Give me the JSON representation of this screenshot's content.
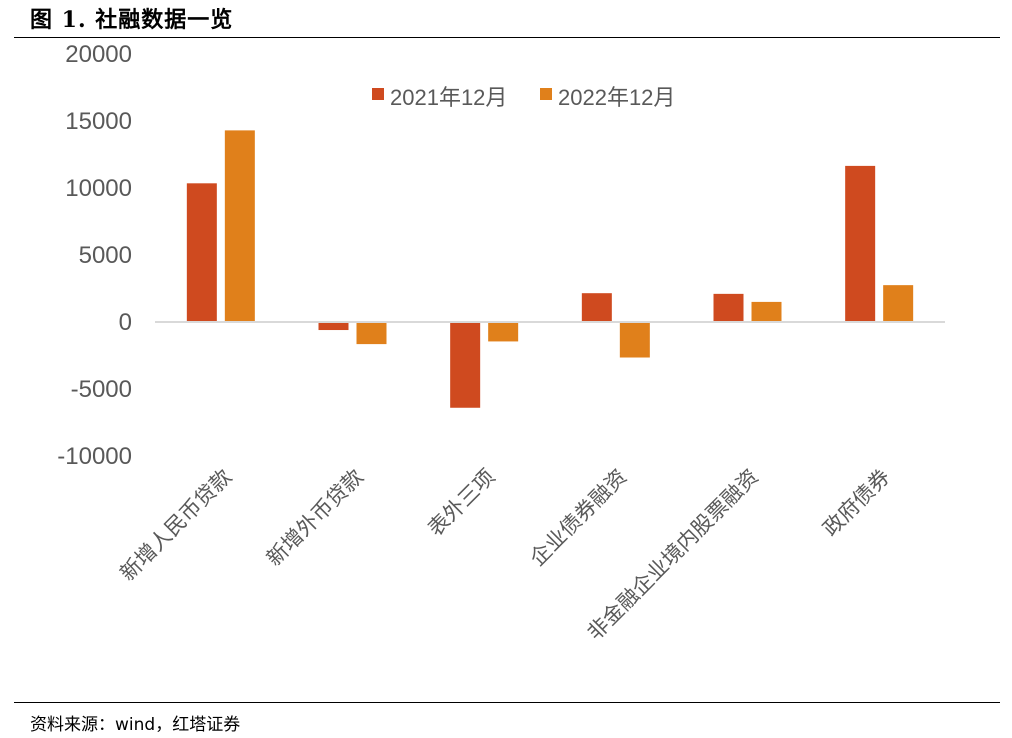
{
  "header": {
    "title": "图 1. 社融数据一览"
  },
  "footer": {
    "source": "资料来源：wind，红塔证券"
  },
  "colors": {
    "series1": "#cf4a1f",
    "series2": "#e0801b",
    "axis": "#d9d9d9",
    "text": "#595959"
  },
  "chart_data": {
    "type": "bar",
    "title": "",
    "xlabel": "",
    "ylabel": "",
    "ylim": [
      -10000,
      20000
    ],
    "yticks": [
      20000,
      15000,
      10000,
      5000,
      0,
      -5000,
      -10000
    ],
    "grid": false,
    "legend_position": "top-center",
    "categories": [
      "新增人民币贷款",
      "新增外币贷款",
      "表外三项",
      "企业债券融资",
      "非金融企业境内股票融资",
      "政府债券"
    ],
    "series": [
      {
        "name": "2021年12月",
        "values": [
          10350,
          -600,
          -6400,
          2150,
          2100,
          11650
        ]
      },
      {
        "name": "2022年12月",
        "values": [
          14300,
          -1650,
          -1450,
          -2650,
          1500,
          2750
        ]
      }
    ]
  }
}
